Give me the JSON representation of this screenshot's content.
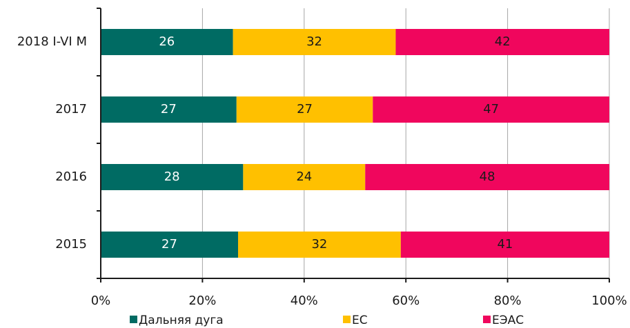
{
  "chart_data": {
    "type": "stacked_barh",
    "categories": [
      "2018 I-VI M",
      "2017",
      "2016",
      "2015"
    ],
    "series": [
      {
        "name": "Дальняя дуга",
        "color": "#006b63",
        "label_color": "#ffffff",
        "values": [
          26,
          26.7,
          28,
          27
        ],
        "value_labels": [
          "26",
          "27",
          "28",
          "27"
        ]
      },
      {
        "name": "ЕС",
        "color": "#ffc000",
        "label_color": "#1a1a1a",
        "values": [
          32,
          26.8,
          24,
          32
        ],
        "value_labels": [
          "32",
          "27",
          "24",
          "32"
        ]
      },
      {
        "name": "ЕЭАС",
        "color": "#f0065d",
        "label_color": "#1a1a1a",
        "values": [
          42,
          46.5,
          48,
          41
        ],
        "value_labels": [
          "42",
          "47",
          "48",
          "41"
        ]
      }
    ],
    "xlim": [
      0,
      100
    ],
    "xticks": [
      {
        "value": 0,
        "label": "0%"
      },
      {
        "value": 20,
        "label": "20%"
      },
      {
        "value": 40,
        "label": "40%"
      },
      {
        "value": 60,
        "label": "60%"
      },
      {
        "value": 80,
        "label": "80%"
      },
      {
        "value": 100,
        "label": "100%"
      }
    ],
    "grid": true,
    "legend": "bottom"
  }
}
